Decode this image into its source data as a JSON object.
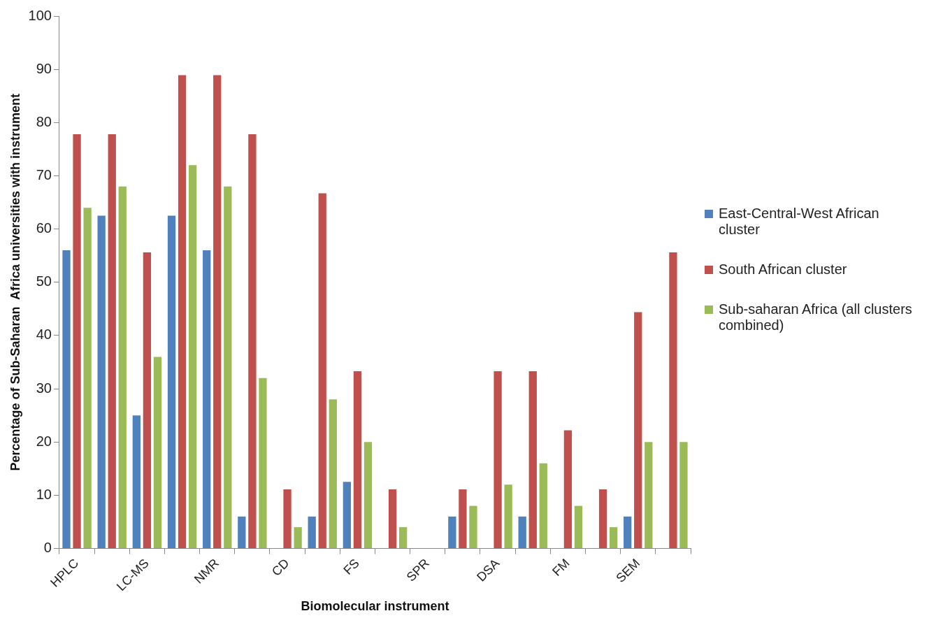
{
  "chart_data": {
    "type": "bar",
    "xlabel": "Biomolecular instrument",
    "ylabel": "Percentage of Sub-Saharan  Africa universities with instrument",
    "categories": [
      "HPLC",
      null,
      "LC-MS",
      null,
      "NMR",
      null,
      "CD",
      null,
      "FS",
      null,
      "SPR",
      null,
      "DSA",
      null,
      "FM",
      null,
      "SEM",
      null
    ],
    "series": [
      {
        "name": "East-Central-West African cluster",
        "color": "#4f81bd",
        "values": [
          56,
          62.5,
          25,
          62.5,
          56,
          6,
          0,
          6,
          12.5,
          0,
          0,
          6,
          0,
          6,
          0,
          0,
          6,
          0
        ]
      },
      {
        "name": "South African cluster",
        "color": "#c0504d",
        "values": [
          77.8,
          77.8,
          55.6,
          88.9,
          88.9,
          77.8,
          11.1,
          66.7,
          33.3,
          11.1,
          0,
          11.1,
          33.3,
          33.3,
          22.2,
          11.1,
          44.4,
          55.6
        ]
      },
      {
        "name": "Sub-saharan Africa (all clusters combined)",
        "color": "#9bbb59",
        "values": [
          64,
          68,
          36,
          72,
          68,
          32,
          4,
          28,
          20,
          4,
          0,
          8,
          12,
          16,
          8,
          4,
          20,
          20
        ]
      }
    ],
    "ylim": [
      0,
      100
    ],
    "yticks": [
      0,
      10,
      20,
      30,
      40,
      50,
      60,
      70,
      80,
      90,
      100
    ],
    "grid": false,
    "legend": "right"
  }
}
